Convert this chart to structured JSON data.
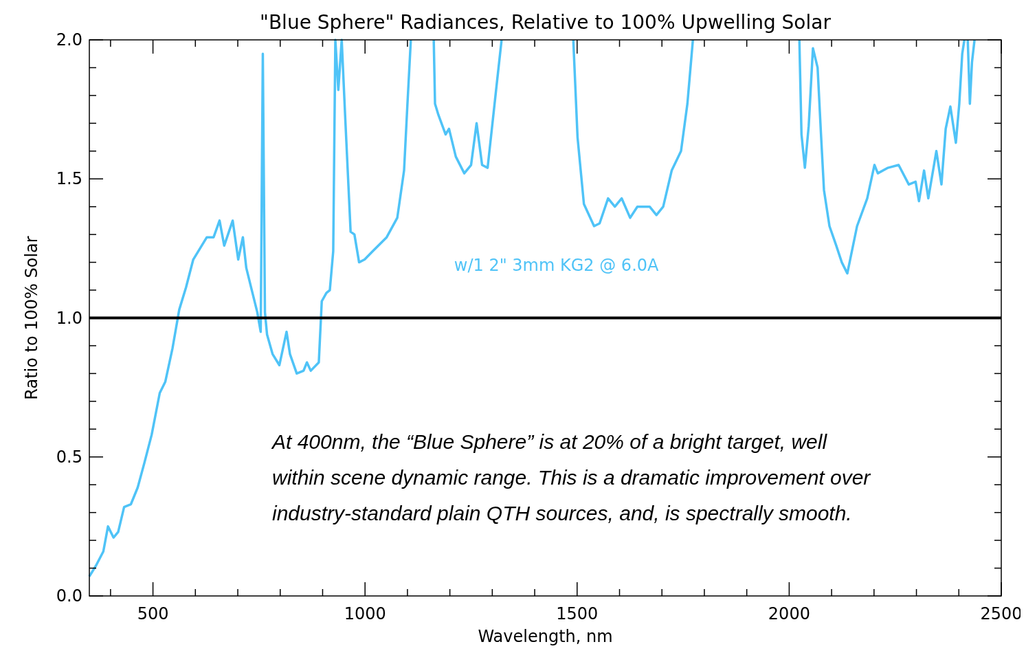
{
  "chart_data": {
    "type": "line",
    "title": "\"Blue Sphere\" Radiances, Relative to 100% Upwelling Solar",
    "xlabel": "Wavelength, nm",
    "ylabel": "Ratio to 100% Solar",
    "xlim": [
      350,
      2500
    ],
    "ylim": [
      0,
      2
    ],
    "xticks": [
      {
        "value": 400,
        "label": null
      },
      500,
      {
        "value": 600,
        "label": null
      },
      {
        "value": 700,
        "label": null
      },
      {
        "value": 800,
        "label": null
      },
      {
        "value": 900,
        "label": null
      },
      1000,
      {
        "value": 1100,
        "label": null
      },
      {
        "value": 1200,
        "label": null
      },
      {
        "value": 1300,
        "label": null
      },
      {
        "value": 1400,
        "label": null
      },
      1500,
      {
        "value": 1600,
        "label": null
      },
      {
        "value": 1700,
        "label": null
      },
      {
        "value": 1800,
        "label": null
      },
      {
        "value": 1900,
        "label": null
      },
      2000,
      {
        "value": 2100,
        "label": null
      },
      {
        "value": 2200,
        "label": null
      },
      {
        "value": 2300,
        "label": null
      },
      {
        "value": 2400,
        "label": null
      },
      2500
    ],
    "yticks": [
      {
        "value": 0,
        "label": "0.0"
      },
      {
        "value": 0.1,
        "label": null
      },
      {
        "value": 0.2,
        "label": null
      },
      {
        "value": 0.3,
        "label": null
      },
      {
        "value": 0.4,
        "label": null
      },
      {
        "value": 0.5,
        "label": "0.5"
      },
      {
        "value": 0.6,
        "label": null
      },
      {
        "value": 0.7,
        "label": null
      },
      {
        "value": 0.8,
        "label": null
      },
      {
        "value": 0.9,
        "label": null
      },
      {
        "value": 1,
        "label": "1.0"
      },
      {
        "value": 1.1,
        "label": null
      },
      {
        "value": 1.2,
        "label": null
      },
      {
        "value": 1.3,
        "label": null
      },
      {
        "value": 1.4,
        "label": null
      },
      {
        "value": 1.5,
        "label": "1.5"
      },
      {
        "value": 1.6,
        "label": null
      },
      {
        "value": 1.7,
        "label": null
      },
      {
        "value": 1.8,
        "label": null
      },
      {
        "value": 1.9,
        "label": null
      },
      {
        "value": 2,
        "label": "2.0"
      }
    ],
    "grid": false,
    "ref_lines": [
      {
        "axis": "y",
        "value": 1,
        "color": "#000000"
      }
    ],
    "annotations": [
      "At 400nm, the “Blue Sphere” is at 20% of a bright target, well within scene dynamic range. This is a dramatic improvement over industry-standard plain QTH sources, and, is spectrally smooth."
    ],
    "series": [
      {
        "name": "w/1 2\" 3mm KG2 @ 6.0A",
        "color": "#4fc3f7",
        "x": [
          350,
          366,
          383,
          394,
          407,
          418,
          432,
          448,
          464,
          480,
          497,
          516,
          529,
          546,
          562,
          578,
          595,
          611,
          627,
          643,
          657,
          668,
          688,
          701,
          712,
          720,
          733,
          746,
          754,
          759,
          764,
          769,
          782,
          798,
          815,
          823,
          839,
          855,
          863,
          872,
          891,
          898,
          909,
          917,
          925,
          930,
          937,
          945,
          953,
          966,
          975,
          986,
          999,
          1018,
          1051,
          1076,
          1092,
          1100,
          1108,
          1135,
          1162,
          1165,
          1173,
          1190,
          1198,
          1214,
          1234,
          1250,
          1263,
          1276,
          1289,
          1309,
          1322,
          1400,
          1491,
          1501,
          1516,
          1540,
          1553,
          1573,
          1589,
          1605,
          1625,
          1642,
          1655,
          1671,
          1687,
          1703,
          1723,
          1745,
          1760,
          1773,
          1900,
          2024,
          2029,
          2037,
          2046,
          2056,
          2067,
          2075,
          2082,
          2095,
          2111,
          2124,
          2137,
          2160,
          2184,
          2201,
          2209,
          2233,
          2258,
          2282,
          2298,
          2306,
          2318,
          2328,
          2347,
          2359,
          2369,
          2380,
          2393,
          2401,
          2408,
          2413,
          2417,
          2421,
          2426,
          2431,
          2437
        ],
        "values": [
          0.07,
          0.11,
          0.16,
          0.25,
          0.21,
          0.23,
          0.32,
          0.33,
          0.39,
          0.48,
          0.58,
          0.73,
          0.77,
          0.89,
          1.03,
          1.11,
          1.21,
          1.25,
          1.29,
          1.29,
          1.35,
          1.26,
          1.35,
          1.21,
          1.29,
          1.18,
          1.1,
          1.02,
          0.95,
          1.95,
          1.02,
          0.94,
          0.87,
          0.83,
          0.95,
          0.87,
          0.8,
          0.81,
          0.84,
          0.81,
          0.84,
          1.06,
          1.09,
          1.1,
          1.24,
          2.0,
          1.82,
          2.0,
          1.73,
          1.31,
          1.3,
          1.2,
          1.21,
          1.24,
          1.29,
          1.36,
          1.53,
          1.77,
          2.0,
          null,
          2.0,
          1.77,
          1.73,
          1.66,
          1.68,
          1.58,
          1.52,
          1.55,
          1.7,
          1.55,
          1.54,
          1.82,
          2.0,
          null,
          2.0,
          1.65,
          1.41,
          1.33,
          1.34,
          1.43,
          1.4,
          1.43,
          1.36,
          1.4,
          1.4,
          1.4,
          1.37,
          1.4,
          1.53,
          1.6,
          1.77,
          2.0,
          null,
          2.0,
          1.66,
          1.54,
          1.69,
          1.97,
          1.9,
          1.66,
          1.46,
          1.33,
          1.26,
          1.2,
          1.16,
          1.33,
          1.43,
          1.55,
          1.52,
          1.54,
          1.55,
          1.48,
          1.49,
          1.42,
          1.53,
          1.43,
          1.6,
          1.48,
          1.68,
          1.76,
          1.63,
          1.77,
          1.95,
          2.0,
          null,
          2.0,
          1.77,
          1.92,
          2.0
        ]
      }
    ]
  }
}
